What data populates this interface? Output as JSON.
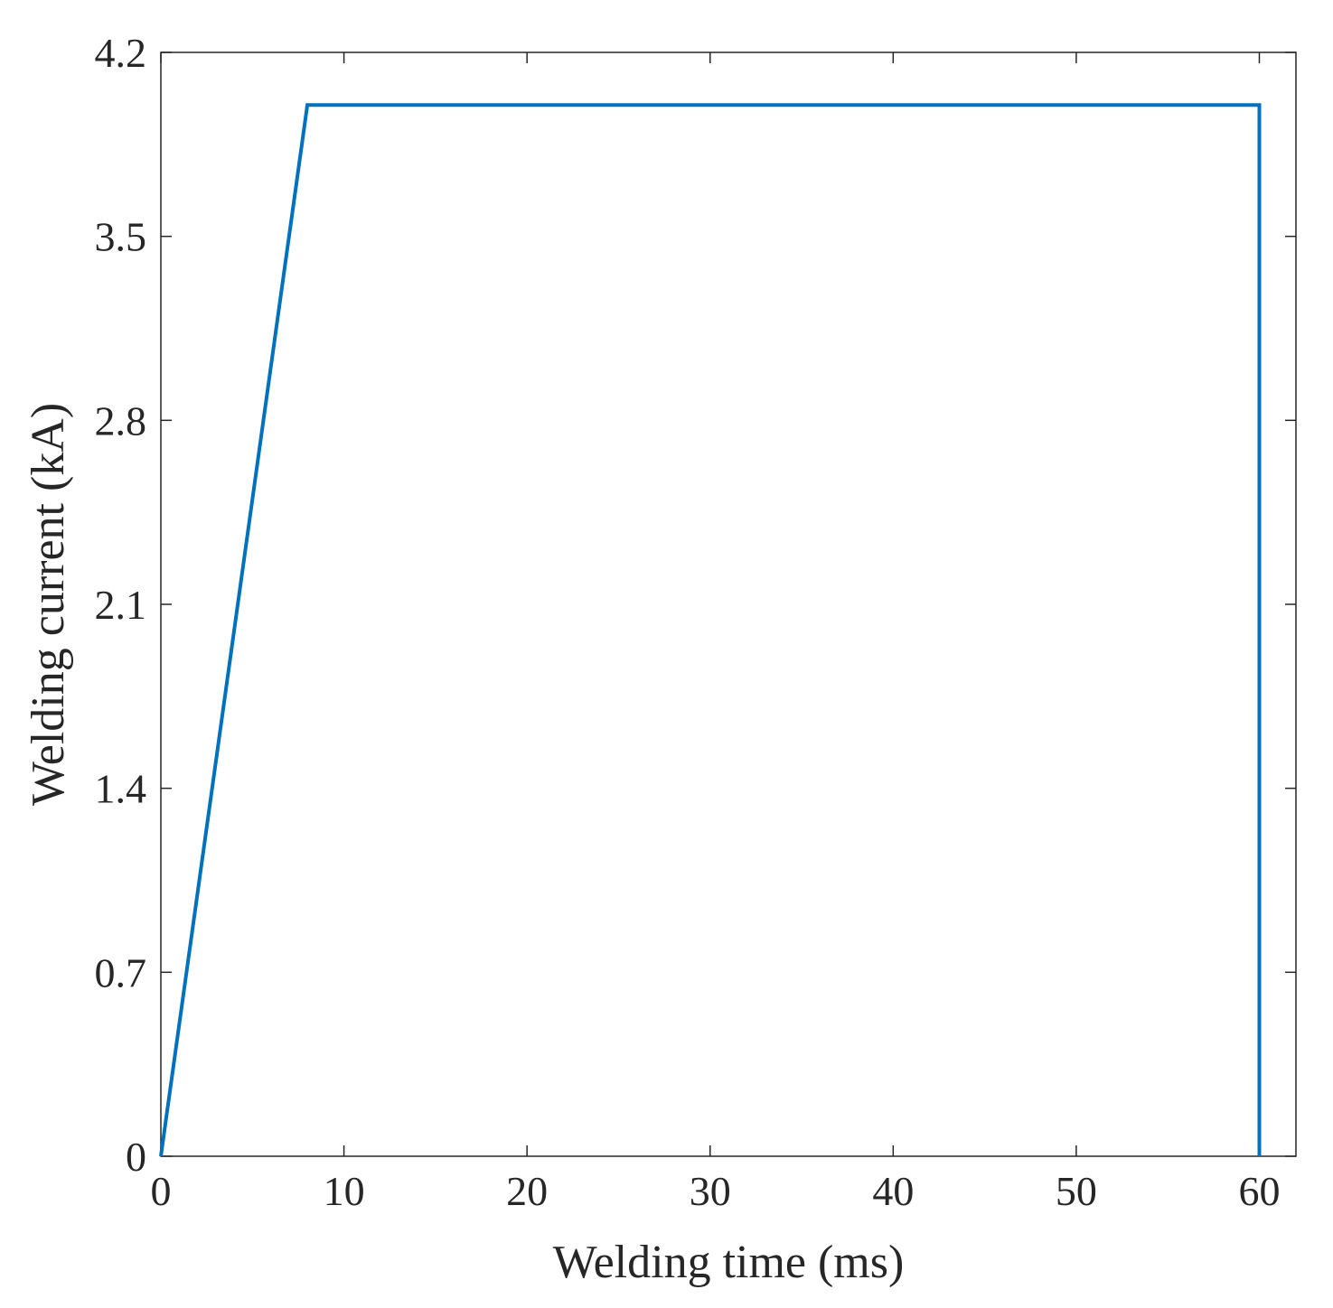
{
  "chart_data": {
    "type": "line",
    "xlabel": "Welding time (ms)",
    "ylabel": "Welding current (kA)",
    "xlim": [
      0,
      62
    ],
    "ylim": [
      0,
      4.2
    ],
    "xticks": [
      "0",
      "10",
      "20",
      "30",
      "40",
      "50",
      "60"
    ],
    "xtick_values": [
      0,
      10,
      20,
      30,
      40,
      50,
      60
    ],
    "yticks": [
      "0",
      "0.7",
      "1.4",
      "2.1",
      "2.8",
      "3.5",
      "4.2"
    ],
    "ytick_values": [
      0,
      0.7,
      1.4,
      2.1,
      2.8,
      3.5,
      4.2
    ],
    "grid": false,
    "box": true,
    "series": [
      {
        "x": [
          0,
          8,
          60,
          60
        ],
        "y": [
          0,
          4.0,
          4.0,
          0
        ],
        "color": "#0072BD"
      }
    ]
  }
}
